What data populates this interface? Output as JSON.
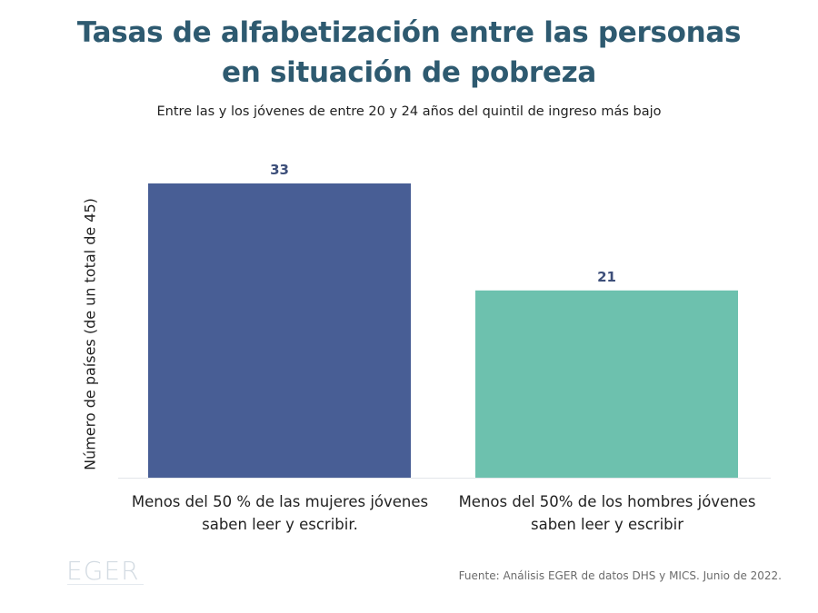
{
  "chart_data": {
    "type": "bar",
    "title_lines": [
      "Tasas de alfabetización entre las personas",
      "en situación de pobreza"
    ],
    "subtitle": "Entre las y los jóvenes de entre 20 y 24 años del quintil de ingreso más bajo",
    "ylabel": "Número de países (de un total de 45)",
    "xlabel": "",
    "categories": [
      [
        "Menos del 50 % de las mujeres jóvenes",
        "saben leer y escribir."
      ],
      [
        "Menos del 50% de los hombres jóvenes",
        "saben leer y escribir"
      ]
    ],
    "values": [
      33,
      21
    ],
    "data_labels": [
      "33",
      "21"
    ],
    "colors": [
      "#485e95",
      "#6dc1ae"
    ],
    "ylim": [
      0,
      33
    ],
    "grid": false,
    "legend": "none"
  },
  "colors": {
    "title": "#2e5a70",
    "data_label": "#3d4f7a",
    "baseline": "#e3e6ea"
  },
  "footer": {
    "source": "Fuente: Análisis EGER de datos DHS y MICS. Junio de 2022.",
    "logo_text": "EGER"
  }
}
